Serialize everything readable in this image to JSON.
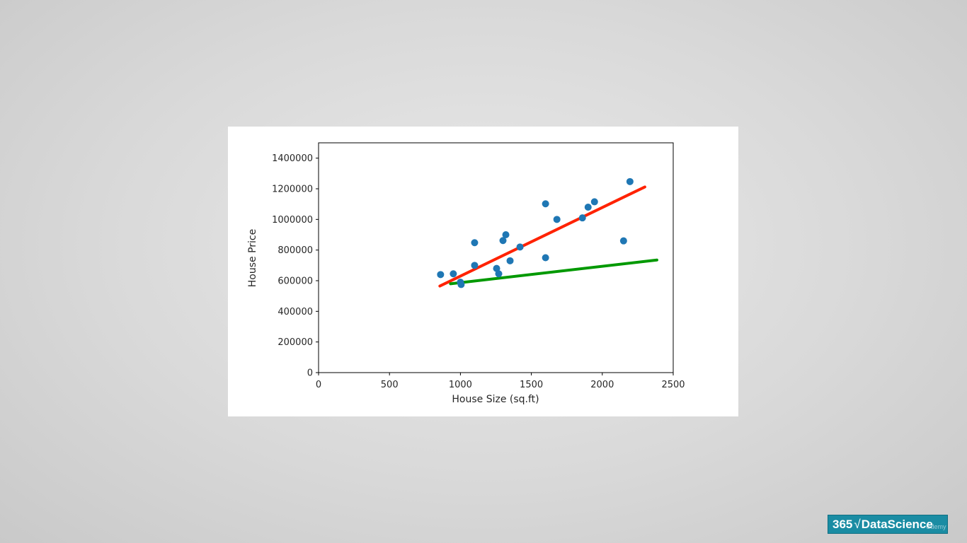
{
  "chart_data": {
    "type": "scatter",
    "title": "",
    "xlabel": "House Size (sq.ft)",
    "ylabel": "House Price",
    "xlim": [
      0,
      2500
    ],
    "ylim": [
      0,
      1500000
    ],
    "xticks": [
      "0",
      "500",
      "1000",
      "1500",
      "2000",
      "2500"
    ],
    "yticks": [
      "0",
      "200000",
      "400000",
      "600000",
      "800000",
      "1000000",
      "1200000",
      "1400000"
    ],
    "grid": false,
    "legend": "none",
    "points_color": "#1f77b4",
    "points": [
      {
        "x": 860,
        "y": 640000
      },
      {
        "x": 950,
        "y": 645000
      },
      {
        "x": 1000,
        "y": 590000
      },
      {
        "x": 1005,
        "y": 575000
      },
      {
        "x": 1100,
        "y": 700000
      },
      {
        "x": 1100,
        "y": 848000
      },
      {
        "x": 1255,
        "y": 680000
      },
      {
        "x": 1270,
        "y": 645000
      },
      {
        "x": 1300,
        "y": 862000
      },
      {
        "x": 1320,
        "y": 900000
      },
      {
        "x": 1350,
        "y": 730000
      },
      {
        "x": 1420,
        "y": 820000
      },
      {
        "x": 1600,
        "y": 1102000
      },
      {
        "x": 1600,
        "y": 750000
      },
      {
        "x": 1680,
        "y": 1000000
      },
      {
        "x": 1860,
        "y": 1010000
      },
      {
        "x": 1900,
        "y": 1080000
      },
      {
        "x": 1945,
        "y": 1115000
      },
      {
        "x": 2150,
        "y": 860000
      },
      {
        "x": 2195,
        "y": 1247000
      }
    ],
    "lines": [
      {
        "color": "#ff2200",
        "x": [
          855,
          2300
        ],
        "y": [
          565000,
          1212000
        ]
      },
      {
        "color": "#009900",
        "x": [
          930,
          2385
        ],
        "y": [
          580000,
          735000
        ]
      }
    ]
  },
  "logo": {
    "number": "365",
    "symbol": "√",
    "brand": "DataScience"
  },
  "watermark": "Udemy"
}
